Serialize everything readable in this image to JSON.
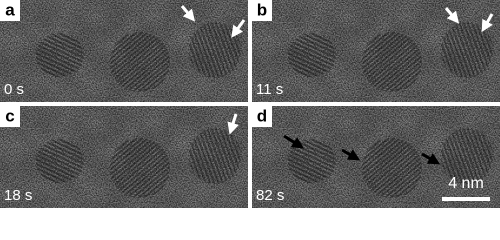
{
  "panels": [
    {
      "label": "a",
      "time": "0 s"
    },
    {
      "label": "b",
      "time": "11 s"
    },
    {
      "label": "c",
      "time": "18 s"
    },
    {
      "label": "d",
      "time": "82 s"
    }
  ],
  "scale_bar": "4 nm"
}
